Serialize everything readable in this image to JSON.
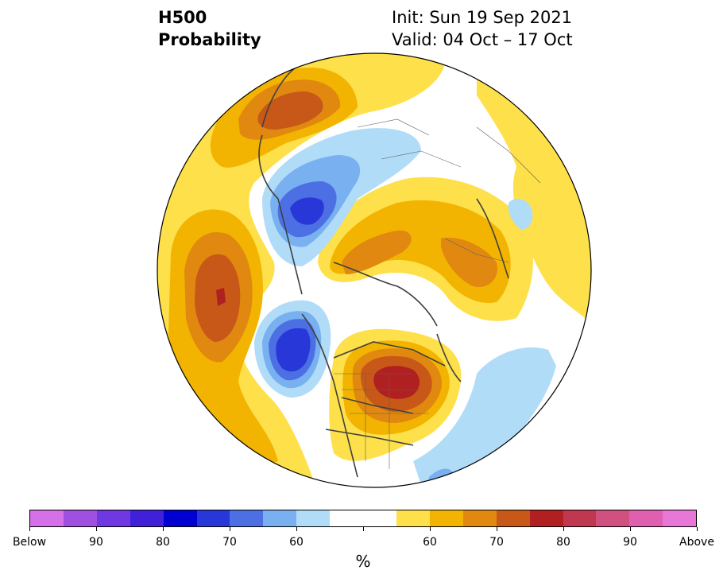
{
  "title": {
    "line1": "H500",
    "line2": "Probability",
    "init": "Init: Sun 19 Sep 2021",
    "valid": "Valid: 04 Oct – 17 Oct"
  },
  "colorbar": {
    "colors": [
      "#d670e8",
      "#a050e0",
      "#7038e0",
      "#4020d8",
      "#0000d0",
      "#2838d8",
      "#4c70e4",
      "#78b0f0",
      "#b0dcf8",
      "#ffffff",
      "#ffffff",
      "#fde04a",
      "#f2b400",
      "#e08810",
      "#c85818",
      "#b02020",
      "#c03850",
      "#d05080",
      "#e060b0",
      "#e878d8"
    ],
    "labels": [
      "Below",
      "90",
      "80",
      "70",
      "60",
      "60",
      "70",
      "80",
      "90",
      "Above"
    ],
    "unit": "%"
  },
  "map": {
    "features": [
      "positive-anomaly-north-pacific",
      "positive-anomaly-eastern-north-america",
      "positive-anomaly-arctic-russia",
      "positive-anomaly-greenland-sea",
      "negative-anomaly-eastern-siberia",
      "negative-anomaly-alaska",
      "negative-anomaly-north-atlantic"
    ]
  }
}
